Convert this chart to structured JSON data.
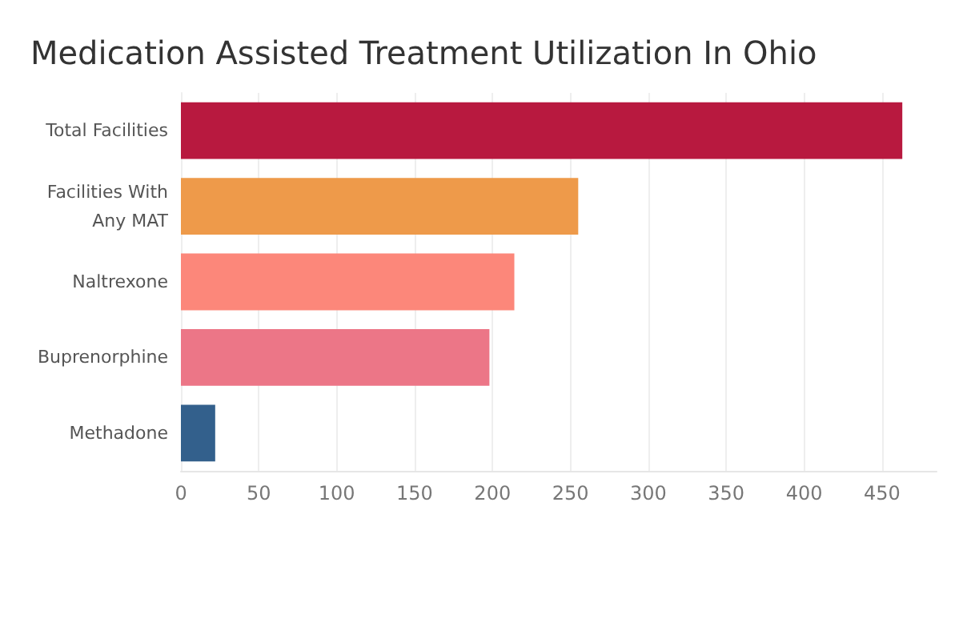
{
  "chart_data": {
    "type": "bar",
    "orientation": "horizontal",
    "title": "Medication Assisted Treatment Utilization In Ohio",
    "categories": [
      "Total Facilities",
      "Facilities With\nAny MAT",
      "Naltrexone",
      "Buprenorphine",
      "Methadone"
    ],
    "values": [
      463,
      255,
      214,
      198,
      22
    ],
    "colors": [
      "#b8193f",
      "#ee9a4a",
      "#fc877a",
      "#ec7687",
      "#33608c"
    ],
    "xlim": [
      0,
      485
    ],
    "xticks": [
      0,
      50,
      100,
      150,
      200,
      250,
      300,
      350,
      400,
      450
    ],
    "grid": "x"
  }
}
